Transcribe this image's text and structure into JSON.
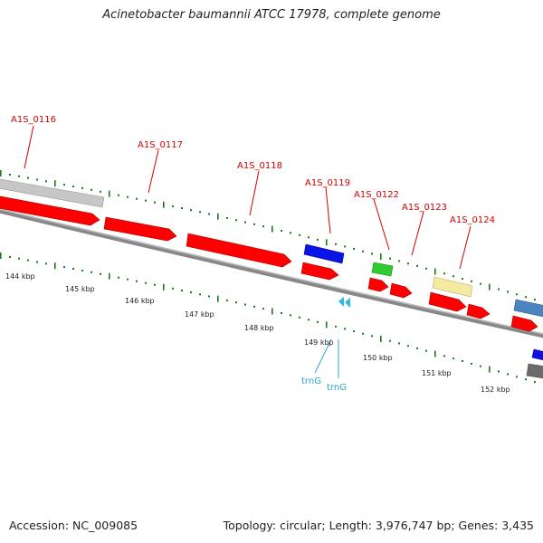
{
  "title": "Acinetobacter baumannii ATCC 17978, complete genome",
  "footer": {
    "accession": "Accession: NC_009085",
    "summary": "Topology: circular; Length: 3,976,747 bp; Genes: 3,435"
  },
  "ruler": {
    "labels": [
      "144 kbp",
      "145 kbp",
      "146 kbp",
      "147 kbp",
      "148 kbp",
      "149 kbp",
      "150 kbp",
      "151 kbp",
      "152 kbp"
    ]
  },
  "gene_labels": [
    "A1S_0116",
    "A1S_0117",
    "A1S_0118",
    "A1S_0119",
    "A1S_0122",
    "A1S_0123",
    "A1S_0124"
  ],
  "rna_labels": [
    "trnG",
    "trnG"
  ],
  "colors": {
    "cds": "#ff0000",
    "gene_grey": "#c8c8c8",
    "gene_blue": "#0000e6",
    "gene_green": "#22cc22",
    "gene_yellow": "#f2e79c",
    "gene_steel": "#4f86c0",
    "trna": "#2fb8e0",
    "ticks": "#1a7a1a",
    "backbone": "#808080"
  }
}
